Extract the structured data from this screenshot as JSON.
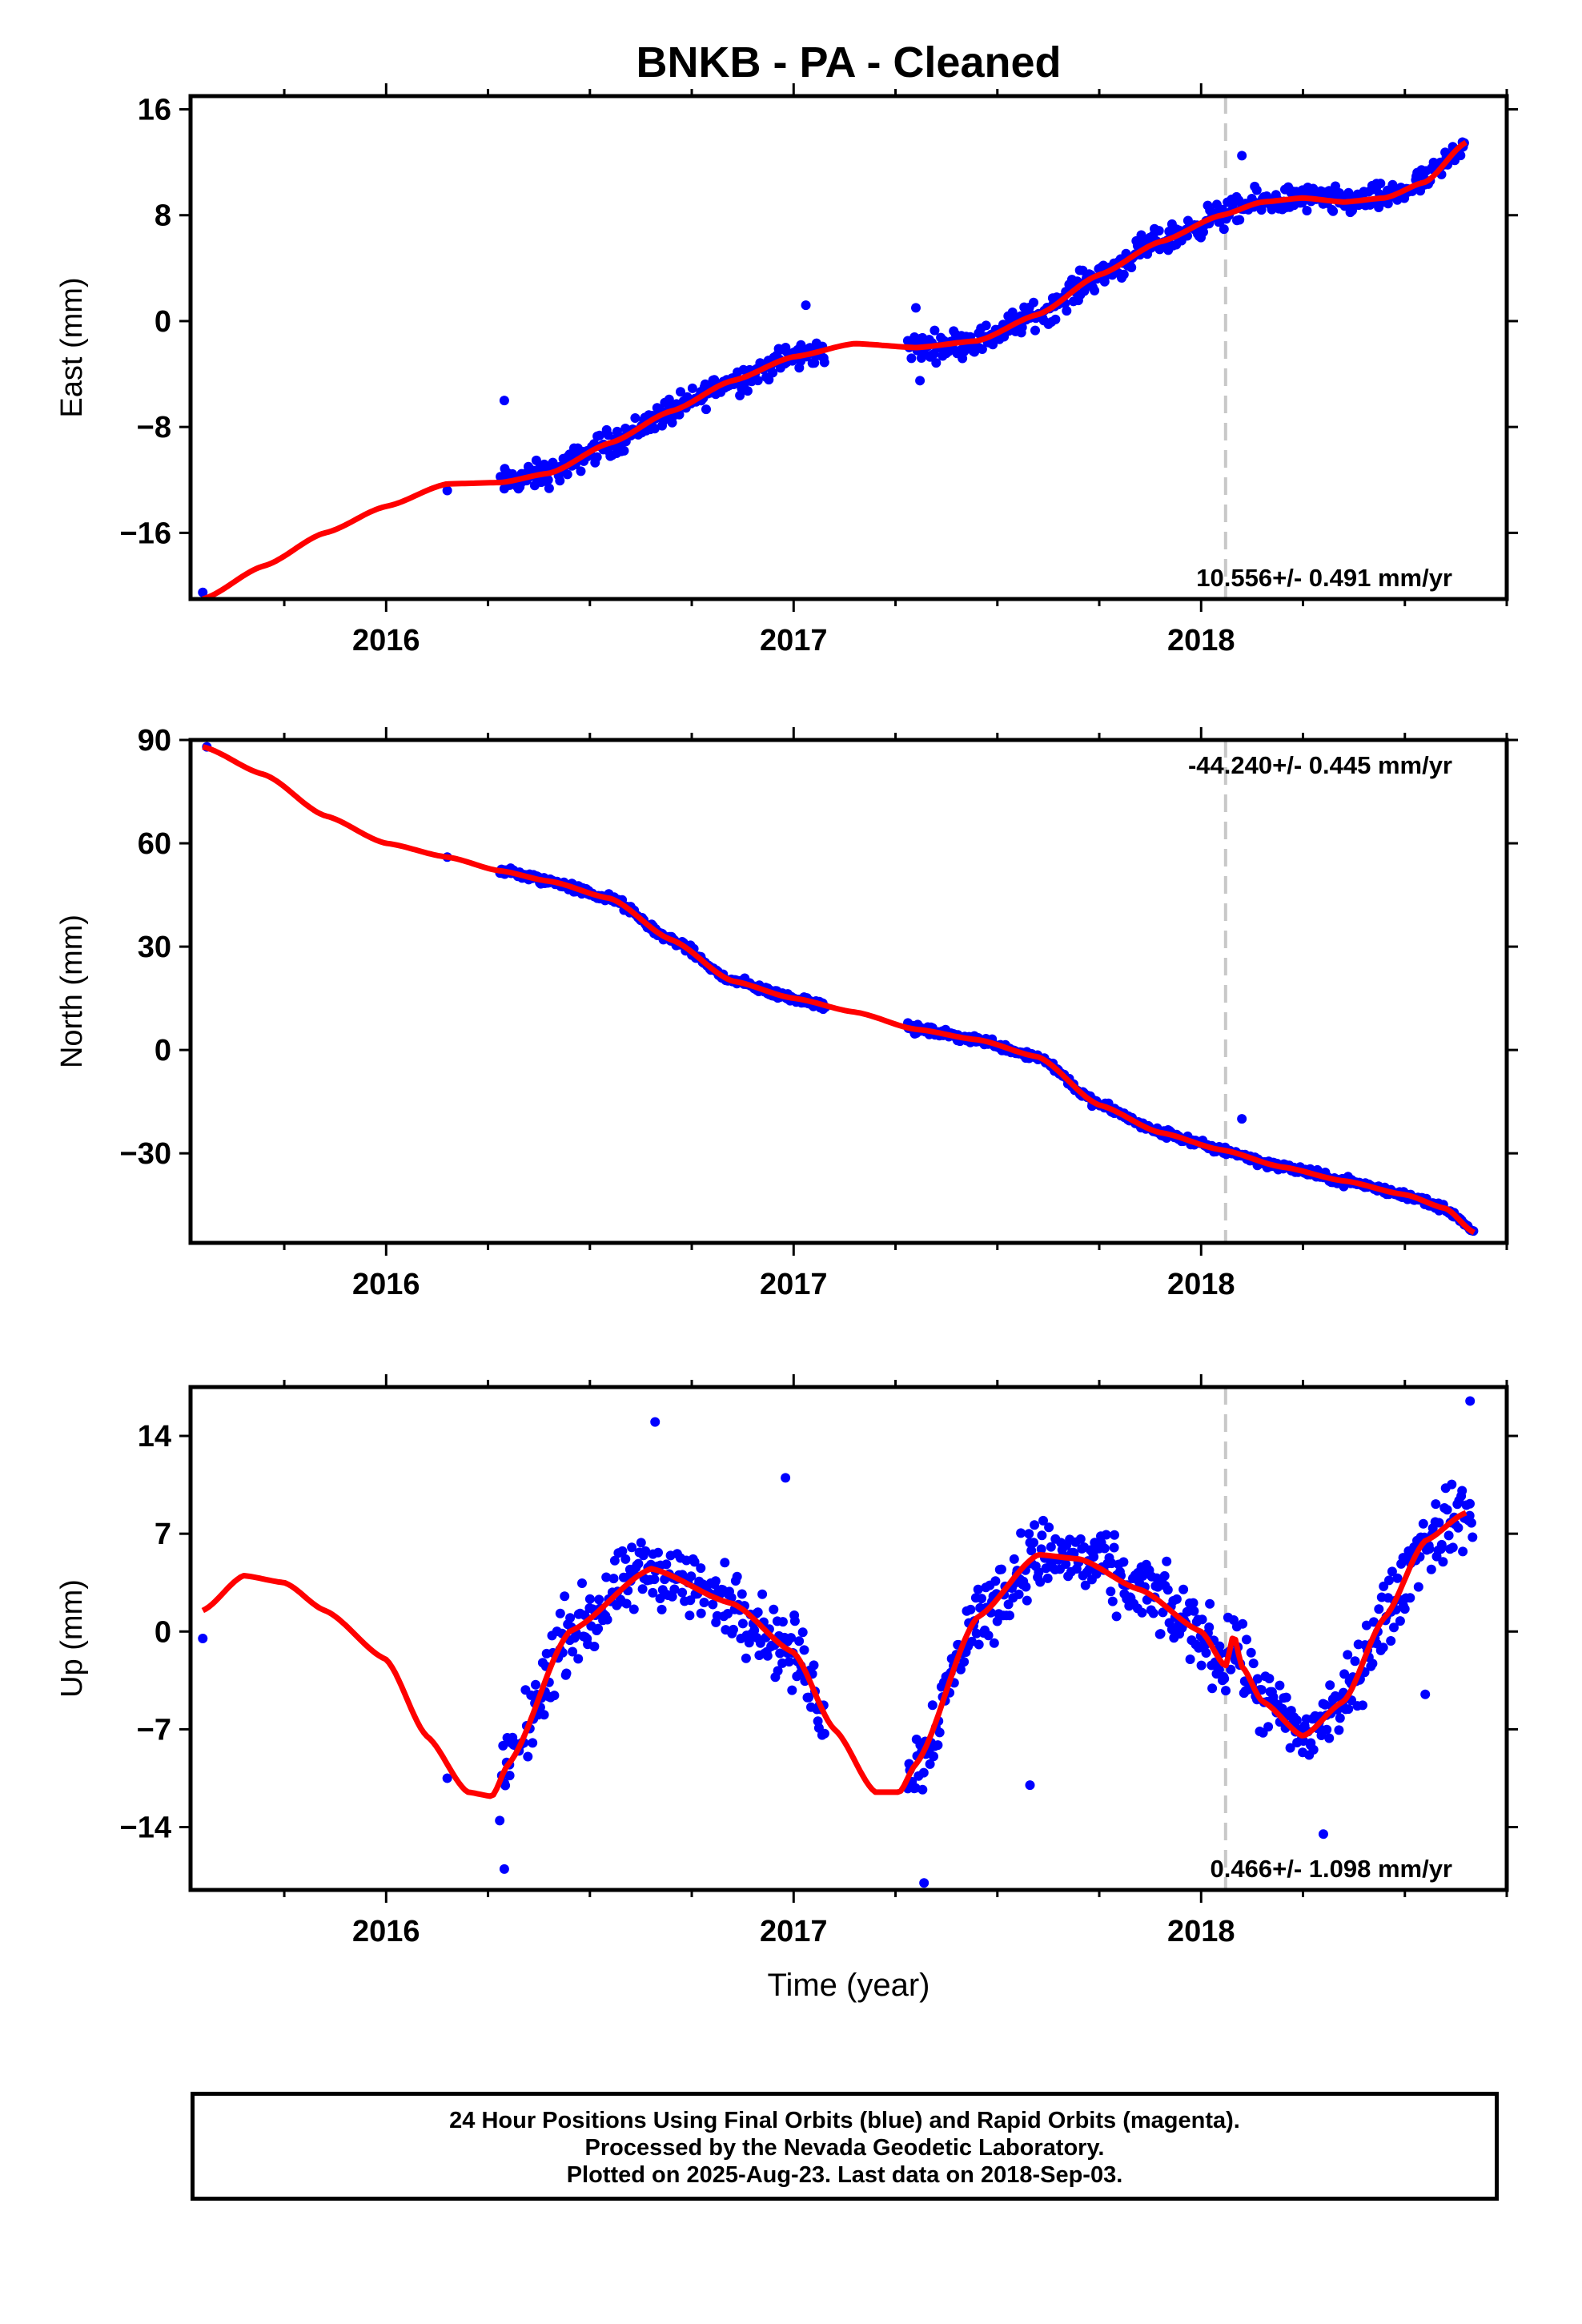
{
  "title": "BNKB  - PA - Cleaned",
  "xlabel": "Time (year)",
  "colors": {
    "points": "#0000ff",
    "fit": "#ff0000",
    "marker": "#c8c8c8",
    "frame": "#000000"
  },
  "marker_year": 2018.06,
  "footer": {
    "line1": "24 Hour Positions Using Final Orbits (blue) and Rapid Orbits (magenta).",
    "line2": "Processed by the Nevada Geodetic Laboratory.",
    "line3": "Plotted on 2025-Aug-23. Last data on 2018-Sep-03."
  },
  "chart_data": [
    {
      "type": "scatter",
      "ylabel": "East (mm)",
      "rate_label": "10.556+/- 0.491 mm/yr",
      "xlim": [
        2015.52,
        2018.75
      ],
      "ylim": [
        -21,
        17
      ],
      "xticks": [
        2016,
        2017,
        2018
      ],
      "xtick_labels": [
        "2016",
        "2017",
        "2018"
      ],
      "yticks": [
        16,
        8,
        0,
        -8,
        -16
      ],
      "ytick_labels": [
        "16",
        "8",
        "0",
        "−8",
        "−16"
      ],
      "grid": false,
      "fit": {
        "x": [
          2015.55,
          2015.7,
          2015.85,
          2016.0,
          2016.15,
          2016.28,
          2016.4,
          2016.55,
          2016.7,
          2016.85,
          2017.0,
          2017.15,
          2017.3,
          2017.45,
          2017.6,
          2017.75,
          2017.9,
          2018.05,
          2018.15,
          2018.25,
          2018.35,
          2018.45,
          2018.55,
          2018.65
        ],
        "y": [
          -21,
          -18.5,
          -16,
          -14,
          -12.3,
          -12.2,
          -11.5,
          -9.2,
          -6.8,
          -4.5,
          -2.7,
          -1.7,
          -2.0,
          -1.5,
          0.5,
          3.5,
          6.0,
          8.0,
          9.0,
          9.3,
          9.0,
          9.3,
          10.5,
          13.5
        ]
      },
      "scatter_noise": 1.2,
      "points_segments": [
        [
          2016.28,
          2017.08
        ],
        [
          2017.28,
          2018.65
        ]
      ],
      "isolated_points": [
        [
          2015.55,
          -20.5
        ],
        [
          2016.15,
          -12.8
        ]
      ],
      "outliers": [
        [
          2016.29,
          -6
        ],
        [
          2017.03,
          1.2
        ],
        [
          2017.3,
          1.0
        ],
        [
          2017.31,
          -4.5
        ],
        [
          2018.1,
          12.5
        ]
      ]
    },
    {
      "type": "scatter",
      "ylabel": "North (mm)",
      "rate_label": "-44.240+/- 0.445 mm/yr",
      "xlim": [
        2015.52,
        2018.75
      ],
      "ylim": [
        -56,
        90
      ],
      "xticks": [
        2016,
        2017,
        2018
      ],
      "xtick_labels": [
        "2016",
        "2017",
        "2018"
      ],
      "yticks": [
        90,
        60,
        30,
        0,
        -30
      ],
      "ytick_labels": [
        "90",
        "60",
        "30",
        "0",
        "−30"
      ],
      "grid": false,
      "fit": {
        "x": [
          2015.55,
          2015.7,
          2015.85,
          2016.0,
          2016.15,
          2016.28,
          2016.4,
          2016.55,
          2016.7,
          2016.85,
          2017.0,
          2017.15,
          2017.3,
          2017.45,
          2017.6,
          2017.75,
          2017.9,
          2018.05,
          2018.2,
          2018.35,
          2018.5,
          2018.6,
          2018.67
        ],
        "y": [
          88,
          80,
          68,
          60,
          56,
          52,
          49,
          44,
          32,
          20,
          15,
          11,
          6,
          3,
          -2,
          -16,
          -24,
          -29,
          -34,
          -38,
          -42,
          -46,
          -53
        ]
      },
      "scatter_noise": 1.5,
      "points_segments": [
        [
          2016.28,
          2017.08
        ],
        [
          2017.28,
          2018.67
        ]
      ],
      "isolated_points": [
        [
          2015.56,
          88
        ],
        [
          2016.15,
          56
        ]
      ],
      "outliers": [
        [
          2018.1,
          -20
        ]
      ]
    },
    {
      "type": "scatter",
      "ylabel": "Up (mm)",
      "rate_label": "0.466+/- 1.098 mm/yr",
      "xlim": [
        2015.52,
        2018.75
      ],
      "ylim": [
        -18.5,
        17.5
      ],
      "xticks": [
        2016,
        2017,
        2018
      ],
      "xtick_labels": [
        "2016",
        "2017",
        "2018"
      ],
      "yticks": [
        14,
        7,
        0,
        -7,
        -14
      ],
      "ytick_labels": [
        "14",
        "7",
        "0",
        "−7",
        "−14"
      ],
      "grid": false,
      "fit": {
        "x": [
          2015.55,
          2015.65,
          2015.75,
          2015.85,
          2016.0,
          2016.1,
          2016.2,
          2016.26,
          2016.3,
          2016.45,
          2016.65,
          2016.85,
          2017.0,
          2017.1,
          2017.2,
          2017.26,
          2017.3,
          2017.45,
          2017.6,
          2017.7,
          2017.85,
          2018.0,
          2018.06,
          2018.08,
          2018.1,
          2018.15,
          2018.25,
          2018.35,
          2018.45,
          2018.55,
          2018.65
        ],
        "y": [
          1.5,
          4,
          3.5,
          1.5,
          -2,
          -7.5,
          -11.5,
          -11.8,
          -9.5,
          0,
          4.5,
          2.0,
          -1.5,
          -7,
          -11.5,
          -11.5,
          -9.5,
          1,
          5.5,
          5.2,
          3,
          0,
          -2.5,
          -0.2,
          -2.5,
          -5,
          -7.5,
          -5,
          1,
          6.5,
          8.5
        ]
      },
      "scatter_noise": 3.0,
      "points_segments": [
        [
          2016.28,
          2017.08
        ],
        [
          2017.28,
          2018.67
        ]
      ],
      "isolated_points": [
        [
          2015.55,
          -0.5
        ],
        [
          2016.15,
          -10.5
        ]
      ],
      "outliers": [
        [
          2016.29,
          -17
        ],
        [
          2016.66,
          15
        ],
        [
          2017.32,
          -18
        ],
        [
          2017.58,
          -11
        ],
        [
          2018.3,
          -14.5
        ],
        [
          2018.55,
          -4.5
        ],
        [
          2018.66,
          16.5
        ],
        [
          2016.98,
          11
        ]
      ]
    }
  ]
}
